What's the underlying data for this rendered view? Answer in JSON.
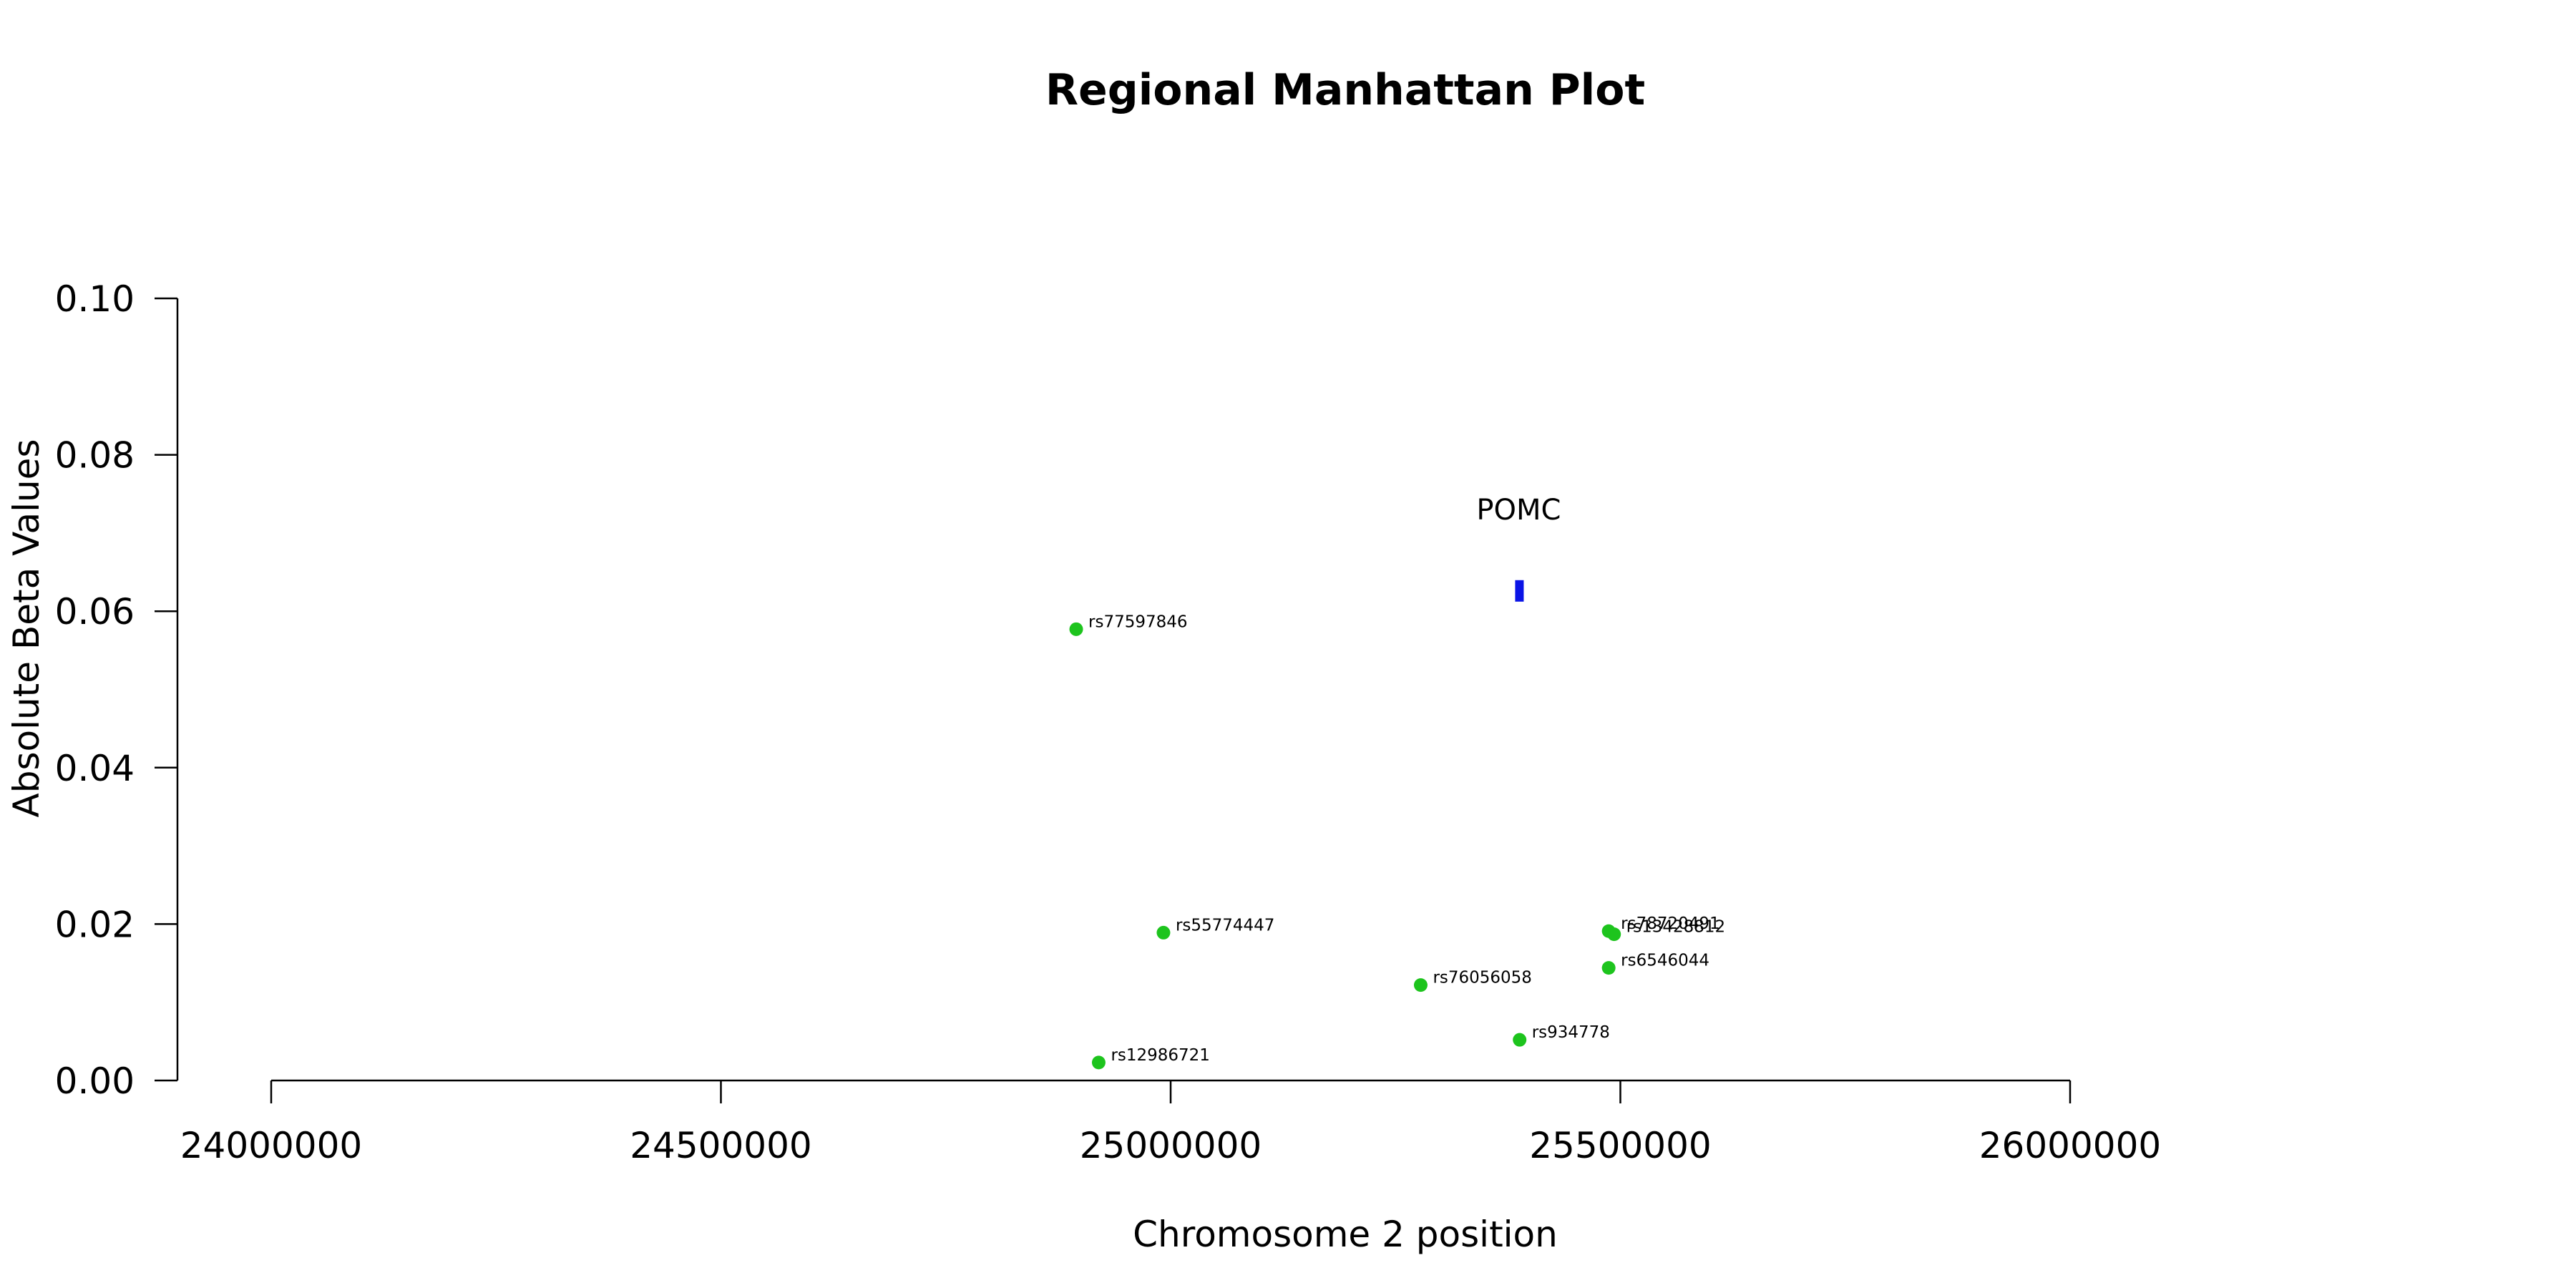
{
  "chart_data": {
    "type": "scatter",
    "title": "Regional Manhattan Plot",
    "xlabel": "Chromosome 2 position",
    "ylabel": "Absolute Beta Values",
    "xlim": [
      24000000,
      26000000
    ],
    "ylim": [
      0,
      0.1
    ],
    "x_ticks": [
      24000000,
      24500000,
      25000000,
      25500000,
      26000000
    ],
    "x_tick_labels": [
      "24000000",
      "24500000",
      "25000000",
      "25500000",
      "26000000"
    ],
    "y_ticks": [
      0,
      0.02,
      0.04,
      0.06,
      0.08,
      0.1
    ],
    "y_tick_labels": [
      "0.00",
      "0.02",
      "0.04",
      "0.06",
      "0.08",
      "0.10"
    ],
    "grid": false,
    "point_color": "#1dc41d",
    "gene_color": "#0a14e6",
    "points": [
      {
        "label": "rs77597846",
        "x": 24895000,
        "y": 0.0577
      },
      {
        "label": "rs55774447",
        "x": 24992000,
        "y": 0.0189
      },
      {
        "label": "rs12986721",
        "x": 24920000,
        "y": 0.0023
      },
      {
        "label": "rs76056058",
        "x": 25278000,
        "y": 0.0122
      },
      {
        "label": "rs934778",
        "x": 25388000,
        "y": 0.0052
      },
      {
        "label": "rs6546044",
        "x": 25487000,
        "y": 0.0144
      },
      {
        "label": "rs78720491",
        "x": 25487000,
        "y": 0.0191
      },
      {
        "label": "rs13428812",
        "x": 25493000,
        "y": 0.0187
      }
    ],
    "genes": [
      {
        "name": "POMC",
        "start": 25383000,
        "end": 25391000,
        "y": 0.0626
      }
    ]
  }
}
